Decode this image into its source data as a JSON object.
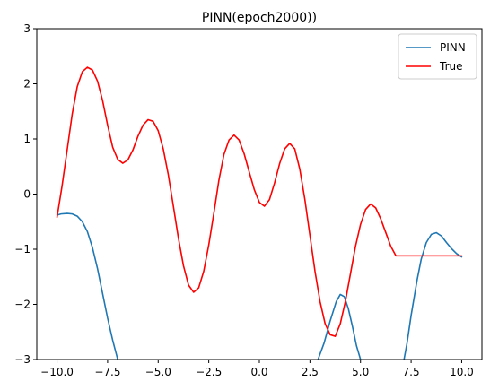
{
  "chart_data": {
    "type": "line",
    "title": "PINN(epoch2000))",
    "xlabel": "",
    "ylabel": "",
    "xlim": [
      -11.0,
      11.0
    ],
    "ylim": [
      -3,
      3
    ],
    "xticks": [
      -10.0,
      -7.5,
      -5.0,
      -2.5,
      0.0,
      2.5,
      5.0,
      7.5,
      10.0
    ],
    "xtick_labels": [
      "−10.0",
      "−7.5",
      "−5.0",
      "−2.5",
      "0.0",
      "2.5",
      "5.0",
      "7.5",
      "10.0"
    ],
    "yticks": [
      -3,
      -2,
      -1,
      0,
      1,
      2,
      3
    ],
    "ytick_labels": [
      "−3",
      "−2",
      "−1",
      "0",
      "1",
      "2",
      "3"
    ],
    "grid": false,
    "legend": "top-right",
    "series": [
      {
        "name": "PINN",
        "color": "#1f77b4",
        "x": [
          -10.0,
          -9.8,
          -9.5,
          -9.25,
          -9.0,
          -8.75,
          -8.5,
          -8.25,
          -8.0,
          -7.75,
          -7.5,
          -7.25,
          -7.0,
          -6.9,
          -6.8,
          2.7,
          2.9,
          3.2,
          3.5,
          3.8,
          4.0,
          4.2,
          4.4,
          4.6,
          4.8,
          5.0,
          5.2,
          7.15,
          7.3,
          7.5,
          7.8,
          8.0,
          8.25,
          8.5,
          8.75,
          9.0,
          9.25,
          9.5,
          9.75,
          10.0
        ],
        "y": [
          -0.38,
          -0.36,
          -0.35,
          -0.36,
          -0.4,
          -0.5,
          -0.68,
          -0.97,
          -1.35,
          -1.8,
          -2.25,
          -2.65,
          -3.0,
          null,
          null,
          null,
          -3.0,
          -2.7,
          -2.3,
          -1.95,
          -1.82,
          -1.86,
          -2.08,
          -2.4,
          -2.75,
          -3.0,
          null,
          -3.0,
          -2.7,
          -2.2,
          -1.55,
          -1.18,
          -0.88,
          -0.73,
          -0.7,
          -0.76,
          -0.88,
          -0.99,
          -1.08,
          -1.14
        ]
      },
      {
        "name": "True",
        "color": "#ff0000",
        "x": [
          -10.0,
          -9.75,
          -9.5,
          -9.25,
          -9.0,
          -8.75,
          -8.5,
          -8.25,
          -8.0,
          -7.75,
          -7.5,
          -7.25,
          -7.0,
          -6.75,
          -6.5,
          -6.25,
          -6.0,
          -5.75,
          -5.5,
          -5.25,
          -5.0,
          -4.75,
          -4.5,
          -4.25,
          -4.0,
          -3.75,
          -3.5,
          -3.25,
          -3.0,
          -2.75,
          -2.5,
          -2.25,
          -2.0,
          -1.75,
          -1.5,
          -1.25,
          -1.0,
          -0.75,
          -0.5,
          -0.25,
          0.0,
          0.25,
          0.5,
          0.75,
          1.0,
          1.25,
          1.5,
          1.75,
          2.0,
          2.25,
          2.5,
          2.75,
          3.0,
          3.25,
          3.5,
          3.75,
          4.0,
          4.25,
          4.5,
          4.75,
          5.0,
          5.25,
          5.5,
          5.75,
          6.0,
          6.25,
          6.5,
          6.75,
          7.0,
          7.25,
          7.5,
          7.75,
          8.0,
          8.25,
          8.5,
          8.75,
          9.0,
          9.25,
          9.5,
          9.75,
          10.0
        ],
        "y": [
          -0.42,
          0.15,
          0.8,
          1.45,
          1.95,
          2.22,
          2.3,
          2.25,
          2.05,
          1.7,
          1.25,
          0.85,
          0.63,
          0.56,
          0.62,
          0.8,
          1.05,
          1.25,
          1.35,
          1.32,
          1.15,
          0.82,
          0.35,
          -0.22,
          -0.8,
          -1.3,
          -1.65,
          -1.78,
          -1.7,
          -1.4,
          -0.92,
          -0.35,
          0.25,
          0.72,
          0.98,
          1.07,
          0.98,
          0.73,
          0.4,
          0.08,
          -0.15,
          -0.22,
          -0.1,
          0.2,
          0.55,
          0.82,
          0.92,
          0.82,
          0.45,
          -0.1,
          -0.75,
          -1.4,
          -1.95,
          -2.35,
          -2.55,
          -2.58,
          -2.35,
          -1.95,
          -1.45,
          -0.95,
          -0.55,
          -0.28,
          -0.18,
          -0.25,
          -0.45,
          -0.7,
          -0.95,
          -1.12,
          -1.12,
          -1.12,
          -1.12,
          -1.12,
          -1.12,
          -1.12,
          -1.12,
          -1.12,
          -1.12,
          -1.12,
          -1.12,
          -1.12,
          -1.12
        ]
      }
    ]
  }
}
